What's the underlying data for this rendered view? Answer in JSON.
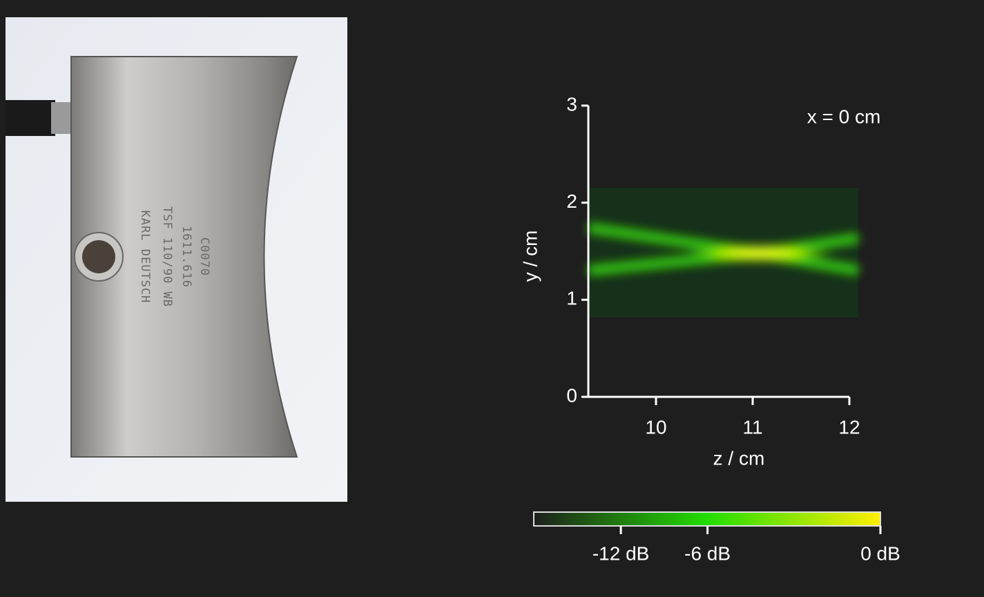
{
  "photo_text": [
    "KARL DEUTSCH",
    "TSF 110/90 WB",
    "1611.616",
    "C0070"
  ],
  "chart_data": {
    "type": "heatmap",
    "annotation": "x = 0 cm",
    "xlabel": "z / cm",
    "ylabel": "y / cm",
    "xlim": [
      9.3,
      12
    ],
    "xticks": [
      10,
      11,
      12
    ],
    "ylim": [
      0,
      3
    ],
    "yticks": [
      0,
      1,
      2,
      3
    ],
    "colorbar": {
      "colors": [
        "#1e1e1e",
        "#22dd00",
        "#ffee00"
      ],
      "scale": "amplitude",
      "ticks": [
        {
          "value": -12,
          "label": "-12 dB"
        },
        {
          "value": -6,
          "label": "-6 dB"
        },
        {
          "value": 0,
          "label": "0 dB"
        }
      ]
    }
  }
}
